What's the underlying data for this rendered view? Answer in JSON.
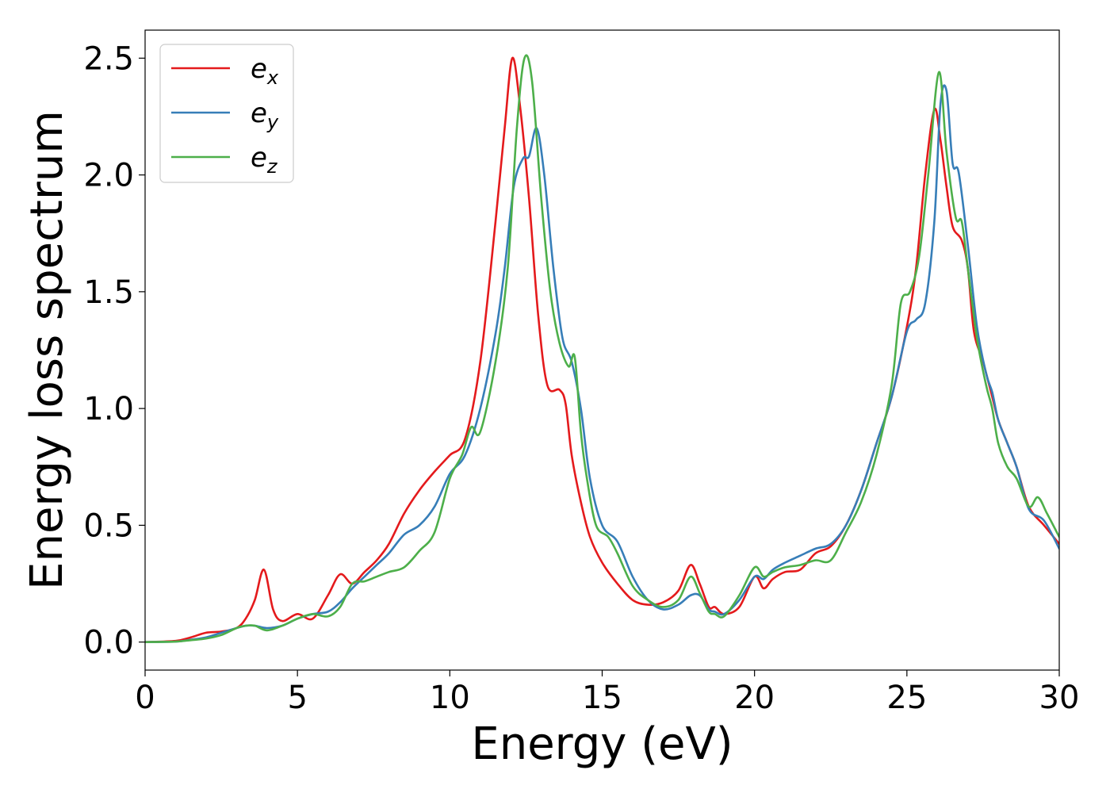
{
  "chart_data": {
    "type": "line",
    "xlabel": "Energy (eV)",
    "ylabel": "Energy loss spectrum",
    "xlim": [
      0,
      30
    ],
    "ylim": [
      -0.12,
      2.62
    ],
    "xticks": [
      0,
      5,
      10,
      15,
      20,
      25,
      30
    ],
    "yticks": [
      0.0,
      0.5,
      1.0,
      1.5,
      2.0,
      2.5
    ],
    "xtick_labels": [
      "0",
      "5",
      "10",
      "15",
      "20",
      "25",
      "30"
    ],
    "ytick_labels": [
      "0.0",
      "0.5",
      "1.0",
      "1.5",
      "2.0",
      "2.5"
    ],
    "grid": false,
    "legend_position": "top-left",
    "series": [
      {
        "name": "e",
        "subscript": "x",
        "color": "#e41a1c",
        "x": [
          0,
          1,
          1.5,
          2,
          2.5,
          3,
          3.3,
          3.6,
          3.9,
          4.2,
          4.5,
          5,
          5.5,
          6,
          6.4,
          6.8,
          7.2,
          7.6,
          8,
          8.5,
          9,
          9.5,
          10,
          10.5,
          11,
          11.5,
          11.8,
          12.05,
          12.3,
          12.6,
          12.9,
          13.2,
          13.6,
          13.8,
          14,
          14.3,
          14.6,
          15,
          15.5,
          16,
          16.5,
          17,
          17.5,
          17.9,
          18.2,
          18.5,
          18.7,
          19,
          19.5,
          20,
          20.3,
          20.6,
          21,
          21.5,
          22,
          22.5,
          23,
          23.5,
          24,
          24.5,
          25,
          25.3,
          25.6,
          25.9,
          26.1,
          26.3,
          26.5,
          26.8,
          27,
          27.2,
          27.5,
          27.8,
          28,
          28.3,
          28.6,
          29,
          29.5,
          30
        ],
        "y": [
          0,
          0.005,
          0.02,
          0.04,
          0.045,
          0.06,
          0.1,
          0.18,
          0.31,
          0.14,
          0.09,
          0.12,
          0.1,
          0.2,
          0.29,
          0.25,
          0.3,
          0.35,
          0.42,
          0.55,
          0.65,
          0.73,
          0.8,
          0.87,
          1.2,
          1.8,
          2.2,
          2.5,
          2.3,
          1.9,
          1.4,
          1.1,
          1.08,
          1.02,
          0.8,
          0.6,
          0.45,
          0.34,
          0.25,
          0.18,
          0.16,
          0.17,
          0.22,
          0.33,
          0.25,
          0.15,
          0.15,
          0.12,
          0.15,
          0.28,
          0.23,
          0.27,
          0.3,
          0.31,
          0.38,
          0.41,
          0.5,
          0.65,
          0.85,
          1.05,
          1.35,
          1.6,
          2.0,
          2.28,
          2.15,
          1.95,
          1.78,
          1.72,
          1.6,
          1.33,
          1.2,
          1.05,
          0.95,
          0.85,
          0.75,
          0.58,
          0.5,
          0.42
        ]
      },
      {
        "name": "e",
        "subscript": "y",
        "color": "#377eb8",
        "x": [
          0,
          1,
          1.5,
          2,
          2.5,
          3,
          3.3,
          3.6,
          4,
          4.5,
          5,
          5.5,
          6,
          6.4,
          6.8,
          7.2,
          7.6,
          8,
          8.5,
          9,
          9.5,
          10,
          10.5,
          11,
          11.5,
          11.8,
          12.1,
          12.4,
          12.6,
          12.85,
          13.1,
          13.4,
          13.7,
          14,
          14.3,
          14.6,
          15,
          15.5,
          16,
          16.5,
          17,
          17.5,
          17.9,
          18.2,
          18.5,
          18.7,
          19,
          19.5,
          20,
          20.3,
          20.6,
          21,
          21.5,
          22,
          22.5,
          23,
          23.5,
          24,
          24.5,
          25,
          25.3,
          25.6,
          25.9,
          26.1,
          26.3,
          26.5,
          26.7,
          27,
          27.3,
          27.6,
          27.8,
          28,
          28.3,
          28.6,
          29,
          29.5,
          30
        ],
        "y": [
          0,
          0.002,
          0.01,
          0.02,
          0.04,
          0.06,
          0.07,
          0.07,
          0.06,
          0.07,
          0.1,
          0.12,
          0.13,
          0.17,
          0.23,
          0.28,
          0.33,
          0.38,
          0.46,
          0.5,
          0.58,
          0.72,
          0.8,
          1.0,
          1.32,
          1.6,
          1.95,
          2.07,
          2.08,
          2.2,
          2.0,
          1.6,
          1.3,
          1.2,
          1.0,
          0.7,
          0.5,
          0.43,
          0.28,
          0.18,
          0.14,
          0.16,
          0.2,
          0.2,
          0.14,
          0.13,
          0.12,
          0.18,
          0.28,
          0.27,
          0.31,
          0.34,
          0.37,
          0.4,
          0.42,
          0.5,
          0.65,
          0.85,
          1.05,
          1.33,
          1.38,
          1.45,
          1.8,
          2.3,
          2.36,
          2.05,
          2.01,
          1.7,
          1.35,
          1.15,
          1.07,
          0.95,
          0.85,
          0.75,
          0.57,
          0.52,
          0.4
        ]
      },
      {
        "name": "e",
        "subscript": "z",
        "color": "#4daf4a",
        "x": [
          0,
          1,
          1.5,
          2,
          2.5,
          3,
          3.3,
          3.6,
          4,
          4.5,
          5,
          5.5,
          6,
          6.4,
          6.8,
          7.2,
          7.6,
          8,
          8.5,
          9,
          9.5,
          10,
          10.4,
          10.7,
          11,
          11.5,
          11.9,
          12.2,
          12.45,
          12.7,
          13,
          13.3,
          13.6,
          13.9,
          14.1,
          14.3,
          14.5,
          14.8,
          15.2,
          15.5,
          16,
          16.5,
          17,
          17.5,
          17.9,
          18.2,
          18.5,
          18.7,
          19,
          19.5,
          20,
          20.3,
          20.6,
          21,
          21.5,
          22,
          22.5,
          23,
          23.5,
          24,
          24.5,
          24.8,
          25.1,
          25.4,
          25.7,
          26.05,
          26.3,
          26.6,
          26.8,
          27,
          27.3,
          27.6,
          27.8,
          28,
          28.3,
          28.6,
          29,
          29.3,
          29.6,
          30
        ],
        "y": [
          0,
          0.002,
          0.008,
          0.015,
          0.03,
          0.06,
          0.07,
          0.07,
          0.05,
          0.07,
          0.1,
          0.12,
          0.11,
          0.15,
          0.25,
          0.26,
          0.28,
          0.3,
          0.32,
          0.39,
          0.47,
          0.7,
          0.8,
          0.92,
          0.9,
          1.2,
          1.6,
          2.2,
          2.5,
          2.4,
          1.9,
          1.5,
          1.28,
          1.18,
          1.22,
          0.9,
          0.7,
          0.5,
          0.45,
          0.38,
          0.24,
          0.18,
          0.15,
          0.18,
          0.28,
          0.21,
          0.13,
          0.12,
          0.11,
          0.2,
          0.32,
          0.28,
          0.3,
          0.32,
          0.33,
          0.35,
          0.35,
          0.47,
          0.6,
          0.8,
          1.1,
          1.45,
          1.5,
          1.65,
          2.0,
          2.44,
          2.1,
          1.82,
          1.8,
          1.6,
          1.3,
          1.1,
          1.0,
          0.85,
          0.75,
          0.7,
          0.58,
          0.62,
          0.55,
          0.45
        ]
      }
    ]
  }
}
